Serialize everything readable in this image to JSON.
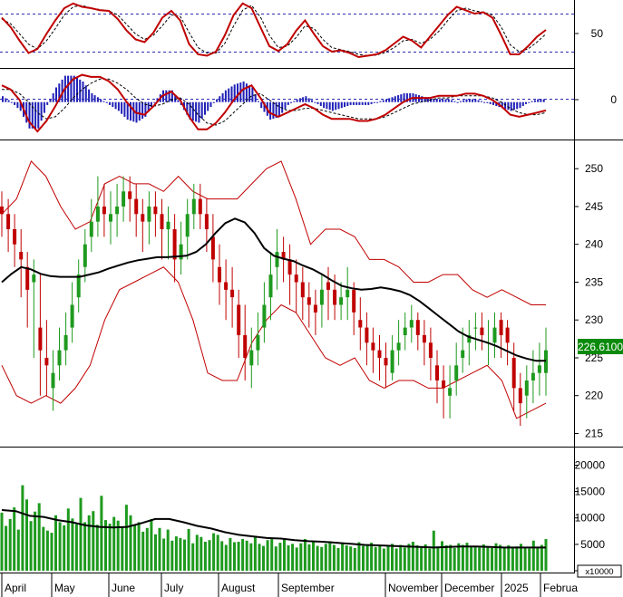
{
  "chart_data": [
    {
      "type": "line",
      "panel": "stochastic",
      "y_ticks": [
        "50"
      ],
      "y_range": [
        0,
        100
      ],
      "levels": [
        80,
        20
      ],
      "series": [
        {
          "role": "main",
          "color": "#c00000",
          "values": [
            74,
            60,
            40,
            22,
            28,
            50,
            70,
            88,
            95,
            90,
            88,
            85,
            84,
            72,
            55,
            42,
            38,
            52,
            74,
            84,
            70,
            35,
            20,
            18,
            24,
            48,
            78,
            95,
            88,
            60,
            32,
            25,
            35,
            55,
            70,
            50,
            32,
            24,
            26,
            22,
            16,
            18,
            20,
            26,
            36,
            46,
            40,
            30,
            46,
            62,
            78,
            90,
            85,
            80,
            82,
            74,
            48,
            20,
            20,
            32,
            46,
            56
          ]
        },
        {
          "role": "signal",
          "color": "#000000",
          "values": [
            72,
            65,
            50,
            35,
            28,
            40,
            58,
            78,
            90,
            92,
            88,
            86,
            84,
            78,
            64,
            50,
            42,
            48,
            62,
            78,
            76,
            52,
            30,
            22,
            22,
            36,
            62,
            85,
            92,
            75,
            48,
            30,
            32,
            45,
            62,
            58,
            42,
            30,
            27,
            24,
            20,
            18,
            19,
            23,
            30,
            40,
            42,
            36,
            42,
            54,
            70,
            84,
            88,
            84,
            82,
            78,
            60,
            34,
            24,
            28,
            38,
            50
          ]
        }
      ]
    },
    {
      "type": "line",
      "panel": "macd",
      "y_ticks": [
        "0"
      ],
      "y_range": [
        -1.7,
        1.5
      ],
      "series": [
        {
          "role": "macd",
          "color": "#c00000",
          "values": [
            0.8,
            0.6,
            0.1,
            -0.9,
            -1.4,
            -0.9,
            -0.2,
            0.6,
            1.1,
            1.3,
            1.2,
            1.2,
            1.0,
            0.6,
            0.0,
            -0.5,
            -0.6,
            -0.2,
            0.3,
            0.5,
            0.1,
            -0.7,
            -1.3,
            -1.3,
            -1.0,
            -0.5,
            0.1,
            0.6,
            0.8,
            0.2,
            -0.5,
            -0.7,
            -0.5,
            -0.3,
            -0.1,
            -0.3,
            -0.6,
            -0.8,
            -0.8,
            -0.8,
            -0.9,
            -0.9,
            -0.8,
            -0.6,
            -0.3,
            0.0,
            0.2,
            0.2,
            0.2,
            0.3,
            0.3,
            0.3,
            0.4,
            0.4,
            0.3,
            0.1,
            -0.2,
            -0.6,
            -0.7,
            -0.6,
            -0.5,
            -0.4
          ]
        },
        {
          "role": "signal",
          "color": "#000000",
          "values": [
            0.6,
            0.6,
            0.4,
            0.0,
            -0.5,
            -0.8,
            -0.7,
            -0.3,
            0.2,
            0.6,
            0.9,
            1.1,
            1.1,
            0.9,
            0.6,
            0.2,
            -0.1,
            -0.2,
            -0.1,
            0.1,
            0.2,
            -0.1,
            -0.6,
            -1.0,
            -1.1,
            -0.9,
            -0.5,
            -0.1,
            0.3,
            0.4,
            0.1,
            -0.2,
            -0.4,
            -0.4,
            -0.3,
            -0.3,
            -0.4,
            -0.5,
            -0.6,
            -0.7,
            -0.8,
            -0.8,
            -0.8,
            -0.7,
            -0.5,
            -0.3,
            -0.1,
            0.0,
            0.1,
            0.2,
            0.2,
            0.3,
            0.3,
            0.3,
            0.3,
            0.2,
            0.0,
            -0.3,
            -0.5,
            -0.6,
            -0.6,
            -0.5
          ]
        }
      ]
    },
    {
      "type": "candlestick",
      "panel": "price",
      "y_ticks": [
        250,
        245,
        240,
        235,
        230,
        225,
        220,
        215
      ],
      "y_range": [
        213.5,
        253.5
      ],
      "last_price_label": "226.6100",
      "colors": {
        "up": "#1e9a1e",
        "down": "#c00000",
        "ma": "#000000",
        "bands": "#c00000"
      },
      "close": [
        244,
        242,
        240,
        238,
        234,
        236,
        226,
        224,
        223,
        226,
        228,
        232,
        236,
        240,
        243,
        245,
        244,
        244,
        245,
        247,
        246,
        244,
        243,
        245,
        244,
        242,
        243,
        238,
        240,
        244,
        246,
        244,
        242,
        238,
        235,
        234,
        233,
        228,
        225,
        226,
        228,
        232,
        236,
        239,
        238,
        236,
        235,
        233,
        232,
        231,
        234,
        234,
        232,
        233,
        234,
        231,
        229,
        227,
        226,
        225,
        224,
        226,
        227,
        229,
        230,
        228,
        227,
        225,
        222,
        221,
        221,
        224,
        226,
        228,
        229,
        228,
        227,
        229,
        228,
        227,
        221,
        219,
        222,
        223,
        224,
        226
      ],
      "open": [
        245,
        244,
        242,
        239,
        237,
        235,
        229,
        225,
        221,
        224,
        226,
        229,
        233,
        237,
        241,
        243,
        245,
        243,
        244,
        245,
        247,
        246,
        244,
        243,
        245,
        244,
        242,
        242,
        238,
        241,
        244,
        246,
        244,
        241,
        237,
        235,
        234,
        232,
        228,
        224,
        226,
        229,
        233,
        237,
        239,
        238,
        236,
        235,
        233,
        232,
        232,
        235,
        234,
        232,
        233,
        234,
        230,
        229,
        227,
        226,
        225,
        223,
        226,
        228,
        229,
        230,
        228,
        227,
        224,
        222,
        220,
        222,
        225,
        227,
        229,
        229,
        227,
        227,
        230,
        229,
        225,
        221,
        220,
        222,
        223,
        223
      ],
      "high": [
        247,
        246,
        244,
        242,
        239,
        238,
        236,
        230,
        226,
        229,
        231,
        235,
        238,
        242,
        246,
        249,
        248,
        247,
        248,
        249,
        249,
        248,
        246,
        247,
        247,
        246,
        245,
        244,
        243,
        246,
        248,
        248,
        246,
        244,
        240,
        238,
        237,
        234,
        232,
        229,
        231,
        235,
        239,
        242,
        241,
        240,
        238,
        237,
        235,
        234,
        236,
        237,
        236,
        235,
        237,
        235,
        233,
        231,
        229,
        228,
        227,
        228,
        230,
        231,
        232,
        231,
        230,
        229,
        226,
        224,
        224,
        227,
        229,
        230,
        231,
        231,
        230,
        231,
        231,
        230,
        227,
        223,
        224,
        226,
        227,
        229
      ],
      "low": [
        241,
        239,
        237,
        233,
        229,
        225,
        220,
        220,
        218,
        222,
        224,
        227,
        231,
        235,
        239,
        241,
        241,
        240,
        241,
        243,
        243,
        241,
        239,
        240,
        241,
        238,
        238,
        235,
        236,
        238,
        242,
        242,
        239,
        235,
        232,
        230,
        229,
        225,
        222,
        221,
        224,
        227,
        230,
        234,
        235,
        232,
        231,
        230,
        229,
        228,
        229,
        230,
        230,
        230,
        230,
        228,
        226,
        224,
        223,
        222,
        221,
        222,
        224,
        226,
        227,
        226,
        224,
        222,
        219,
        217,
        217,
        220,
        223,
        224,
        226,
        226,
        224,
        225,
        225,
        224,
        218,
        216,
        217,
        219,
        220,
        220
      ],
      "ma": [
        235,
        236.1,
        237,
        236.7,
        236.1,
        235.8,
        235.7,
        235.7,
        235.7,
        236.0,
        236.3,
        236.8,
        237.2,
        237.6,
        237.9,
        238.1,
        238.3,
        238.3,
        238.4,
        238.5,
        239.0,
        240.0,
        241.5,
        242.8,
        243.4,
        242.9,
        241.5,
        239.5,
        238.5,
        238.1,
        237.8,
        237.2,
        236.7,
        236.0,
        235.2,
        234.5,
        234.2,
        234.0,
        234.1,
        234.3,
        234.1,
        233.8,
        233.3,
        232.5,
        231.5,
        230.5,
        229.5,
        228.5,
        227.8,
        227.4,
        227.0,
        226.5,
        225.9,
        225.3,
        224.9,
        224.6,
        224.6
      ],
      "ma_x": [
        0,
        2,
        4,
        6,
        8,
        10,
        12,
        14,
        16,
        18,
        20,
        22,
        24,
        26,
        28,
        30,
        32,
        34,
        36,
        38,
        40,
        42,
        44,
        46,
        48,
        50,
        52,
        54,
        56,
        58,
        60,
        62,
        64,
        66,
        68,
        70,
        72,
        74,
        76,
        78,
        80,
        82,
        84,
        86,
        88,
        90,
        92,
        94,
        96,
        98,
        100,
        102,
        104,
        106,
        108,
        110,
        112
      ],
      "bb_upper": [
        244,
        246,
        251,
        249,
        245,
        242,
        243,
        248,
        249,
        248,
        248,
        247,
        249,
        247,
        246,
        246,
        246,
        248,
        250,
        251,
        246,
        240,
        242,
        242,
        241,
        238,
        238,
        237,
        235,
        235,
        236,
        236,
        234,
        233,
        234,
        233,
        232,
        232
      ],
      "bb_lower": [
        224,
        220,
        219,
        220,
        219,
        221,
        224,
        230,
        234,
        235,
        236,
        237,
        235,
        230,
        223,
        222,
        222,
        227,
        230,
        232,
        231,
        228,
        225,
        224,
        225,
        222,
        221,
        222,
        222,
        221,
        221,
        222,
        223,
        224,
        222,
        217,
        218,
        219
      ],
      "bb_x": [
        0,
        3,
        6,
        9,
        12,
        15,
        18,
        21,
        24,
        27,
        30,
        33,
        36,
        39,
        42,
        45,
        48,
        51,
        54,
        57,
        60,
        63,
        66,
        69,
        72,
        75,
        78,
        81,
        84,
        87,
        90,
        93,
        96,
        99,
        102,
        105,
        108,
        111
      ]
    },
    {
      "type": "bar",
      "panel": "volume",
      "unit_label": "x10000",
      "y_ticks": [
        20000,
        15000,
        10000,
        5000,
        0
      ],
      "y_range": [
        0,
        23000
      ],
      "colors": {
        "bars": "#1e9a1e",
        "ma": "#000000"
      },
      "values": [
        11000,
        8500,
        9800,
        12000,
        7800,
        16200,
        13500,
        9400,
        11200,
        12800,
        8300,
        7600,
        7200,
        10500,
        9200,
        8600,
        11800,
        9900,
        8800,
        13800,
        9200,
        10500,
        11300,
        8700,
        14200,
        9600,
        8900,
        10200,
        9500,
        8200,
        12500,
        10500,
        8700,
        9200,
        7400,
        8100,
        9800,
        6900,
        8100,
        6100,
        7800,
        5700,
        6500,
        6200,
        5900,
        7900,
        5200,
        6800,
        6400,
        5500,
        5800,
        7100,
        6800,
        5600,
        4900,
        6200,
        5400,
        5500,
        6000,
        5700,
        5200,
        6500,
        5100,
        4700,
        5800,
        6200,
        4600,
        5300,
        5900,
        4800,
        5100,
        4400,
        5200,
        6000,
        5000,
        5400,
        4700,
        4500,
        5100,
        5600,
        4900,
        4300,
        5100,
        4800,
        4600,
        4300,
        5400,
        4700,
        4800,
        5300,
        4500,
        4800,
        4200,
        4600,
        5100,
        4200,
        4900,
        4400,
        5100,
        5500,
        4800,
        4500,
        5000,
        4200,
        7600,
        4600,
        5600,
        4800,
        4900,
        4300,
        5200,
        4900,
        5300,
        4700,
        4600,
        4400,
        5000,
        4600,
        4300,
        5200,
        4900,
        4500,
        4800,
        4300,
        4600,
        5100,
        4400,
        4200,
        5700,
        4500,
        4900,
        6000
      ],
      "ma": [
        11500,
        11300,
        10400,
        10200,
        9600,
        9200,
        8600,
        8300,
        8200,
        8300,
        9000,
        9800,
        9800,
        9200,
        8500,
        8000,
        7300,
        6800,
        6500,
        6200,
        6100,
        5800,
        5600,
        5500,
        5300,
        5100,
        4900,
        4800,
        4700,
        4600,
        4500,
        4400,
        4500,
        4600,
        4600,
        4500,
        4400,
        4400,
        4400,
        4400
      ],
      "ma_x": [
        0,
        3,
        6,
        9,
        12,
        15,
        18,
        21,
        24,
        27,
        30,
        33,
        36,
        39,
        42,
        45,
        48,
        51,
        54,
        57,
        60,
        63,
        66,
        69,
        72,
        75,
        78,
        81,
        84,
        87,
        90,
        93,
        96,
        99,
        102,
        105,
        108,
        111,
        114,
        117
      ]
    }
  ],
  "x_axis": {
    "labels": [
      "April",
      "May",
      "June",
      "July",
      "August",
      "September",
      "November",
      "December",
      "2025",
      "Februa"
    ]
  }
}
